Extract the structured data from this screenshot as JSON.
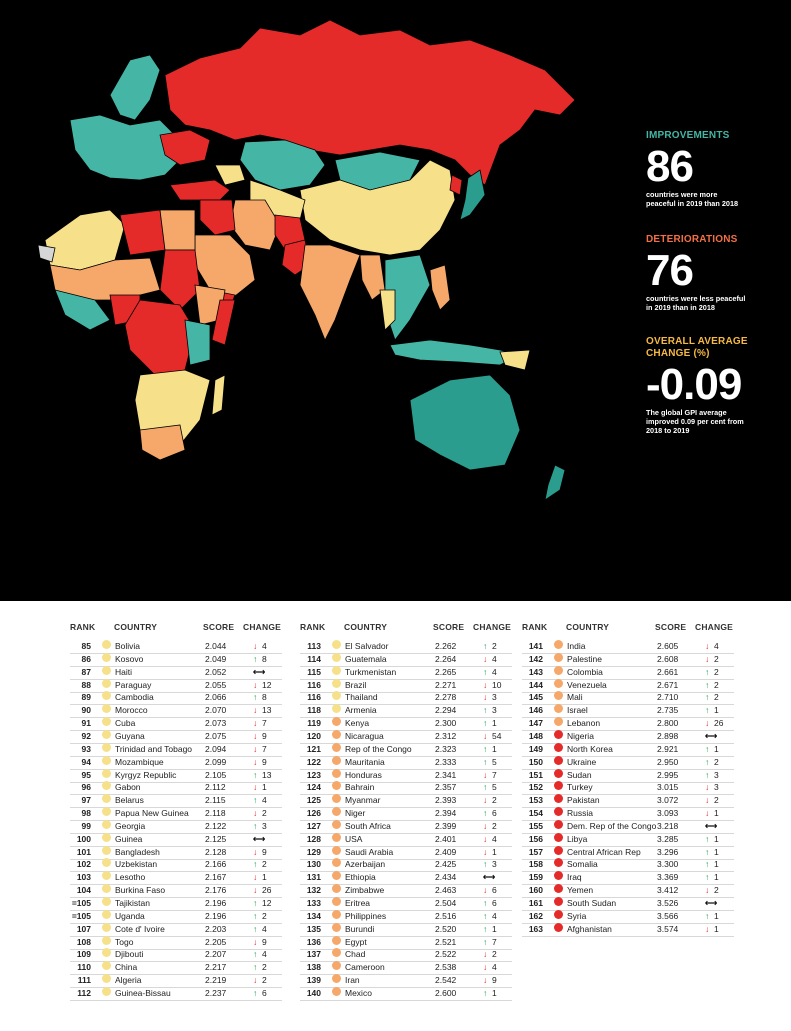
{
  "improvements": {
    "heading": "IMPROVEMENTS",
    "number": "86",
    "text": "countries were more peaceful in 2019 than 2018"
  },
  "deteriorations": {
    "heading": "DETERIORATIONS",
    "number": "76",
    "text": "countries were less peaceful in 2019 than in 2018"
  },
  "average": {
    "heading": "OVERALL AVERAGE CHANGE (%)",
    "number": "-0.09",
    "text": "The global GPI average improved 0.09 per cent from 2018 to 2019"
  },
  "colors": {
    "very_high": "#2a9d8f",
    "high": "#45b6a5",
    "medium": "#f6e08a",
    "low": "#f5a86a",
    "very_low": "#e52a2a",
    "nodata": "#d6d6d6",
    "map_bg": "#000000"
  },
  "headers": {
    "rank": "RANK",
    "country": "COUNTRY",
    "score": "SCORE",
    "change": "CHANGE"
  },
  "columns": [
    [
      {
        "rank": "85",
        "country": "Bolivia",
        "score": "2.044",
        "dir": "down",
        "change": "4",
        "level": "medium"
      },
      {
        "rank": "86",
        "country": "Kosovo",
        "score": "2.049",
        "dir": "up",
        "change": "8",
        "level": "medium"
      },
      {
        "rank": "87",
        "country": "Haiti",
        "score": "2.052",
        "dir": "same",
        "change": "",
        "level": "medium"
      },
      {
        "rank": "88",
        "country": "Paraguay",
        "score": "2.055",
        "dir": "down",
        "change": "12",
        "level": "medium"
      },
      {
        "rank": "89",
        "country": "Cambodia",
        "score": "2.066",
        "dir": "up",
        "change": "8",
        "level": "medium"
      },
      {
        "rank": "90",
        "country": "Morocco",
        "score": "2.070",
        "dir": "down",
        "change": "13",
        "level": "medium"
      },
      {
        "rank": "91",
        "country": "Cuba",
        "score": "2.073",
        "dir": "down",
        "change": "7",
        "level": "medium"
      },
      {
        "rank": "92",
        "country": "Guyana",
        "score": "2.075",
        "dir": "down",
        "change": "9",
        "level": "medium"
      },
      {
        "rank": "93",
        "country": "Trinidad and Tobago",
        "score": "2.094",
        "dir": "down",
        "change": "7",
        "level": "medium"
      },
      {
        "rank": "94",
        "country": "Mozambique",
        "score": "2.099",
        "dir": "down",
        "change": "9",
        "level": "medium"
      },
      {
        "rank": "95",
        "country": "Kyrgyz Republic",
        "score": "2.105",
        "dir": "up",
        "change": "13",
        "level": "medium"
      },
      {
        "rank": "96",
        "country": "Gabon",
        "score": "2.112",
        "dir": "down",
        "change": "1",
        "level": "medium"
      },
      {
        "rank": "97",
        "country": "Belarus",
        "score": "2.115",
        "dir": "up",
        "change": "4",
        "level": "medium"
      },
      {
        "rank": "98",
        "country": "Papua New Guinea",
        "score": "2.118",
        "dir": "down",
        "change": "2",
        "level": "medium"
      },
      {
        "rank": "99",
        "country": "Georgia",
        "score": "2.122",
        "dir": "up",
        "change": "3",
        "level": "medium"
      },
      {
        "rank": "100",
        "country": "Guinea",
        "score": "2.125",
        "dir": "same",
        "change": "",
        "level": "medium"
      },
      {
        "rank": "101",
        "country": "Bangladesh",
        "score": "2.128",
        "dir": "down",
        "change": "9",
        "level": "medium"
      },
      {
        "rank": "102",
        "country": "Uzbekistan",
        "score": "2.166",
        "dir": "up",
        "change": "2",
        "level": "medium"
      },
      {
        "rank": "103",
        "country": "Lesotho",
        "score": "2.167",
        "dir": "down",
        "change": "1",
        "level": "medium"
      },
      {
        "rank": "104",
        "country": "Burkina Faso",
        "score": "2.176",
        "dir": "down",
        "change": "26",
        "level": "medium"
      },
      {
        "rank": "=105",
        "country": "Tajikistan",
        "score": "2.196",
        "dir": "up",
        "change": "12",
        "level": "medium"
      },
      {
        "rank": "=105",
        "country": "Uganda",
        "score": "2.196",
        "dir": "up",
        "change": "2",
        "level": "medium"
      },
      {
        "rank": "107",
        "country": "Cote d' Ivoire",
        "score": "2.203",
        "dir": "up",
        "change": "4",
        "level": "medium"
      },
      {
        "rank": "108",
        "country": "Togo",
        "score": "2.205",
        "dir": "down",
        "change": "9",
        "level": "medium"
      },
      {
        "rank": "109",
        "country": "Djibouti",
        "score": "2.207",
        "dir": "up",
        "change": "4",
        "level": "medium"
      },
      {
        "rank": "110",
        "country": "China",
        "score": "2.217",
        "dir": "up",
        "change": "2",
        "level": "medium"
      },
      {
        "rank": "111",
        "country": "Algeria",
        "score": "2.219",
        "dir": "down",
        "change": "2",
        "level": "medium"
      },
      {
        "rank": "112",
        "country": "Guinea-Bissau",
        "score": "2.237",
        "dir": "up",
        "change": "6",
        "level": "medium"
      }
    ],
    [
      {
        "rank": "113",
        "country": "El Salvador",
        "score": "2.262",
        "dir": "up",
        "change": "2",
        "level": "medium"
      },
      {
        "rank": "114",
        "country": "Guatemala",
        "score": "2.264",
        "dir": "down",
        "change": "4",
        "level": "medium"
      },
      {
        "rank": "115",
        "country": "Turkmenistan",
        "score": "2.265",
        "dir": "up",
        "change": "4",
        "level": "medium"
      },
      {
        "rank": "116",
        "country": "Brazil",
        "score": "2.271",
        "dir": "down",
        "change": "10",
        "level": "medium"
      },
      {
        "rank": "116",
        "country": "Thailand",
        "score": "2.278",
        "dir": "down",
        "change": "3",
        "level": "medium"
      },
      {
        "rank": "118",
        "country": "Armenia",
        "score": "2.294",
        "dir": "up",
        "change": "3",
        "level": "medium"
      },
      {
        "rank": "119",
        "country": "Kenya",
        "score": "2.300",
        "dir": "up",
        "change": "1",
        "level": "low"
      },
      {
        "rank": "120",
        "country": "Nicaragua",
        "score": "2.312",
        "dir": "down",
        "change": "54",
        "level": "low"
      },
      {
        "rank": "121",
        "country": "Rep of the Congo",
        "score": "2.323",
        "dir": "up",
        "change": "1",
        "level": "low"
      },
      {
        "rank": "122",
        "country": "Mauritania",
        "score": "2.333",
        "dir": "up",
        "change": "5",
        "level": "low"
      },
      {
        "rank": "123",
        "country": "Honduras",
        "score": "2.341",
        "dir": "down",
        "change": "7",
        "level": "low"
      },
      {
        "rank": "124",
        "country": "Bahrain",
        "score": "2.357",
        "dir": "up",
        "change": "5",
        "level": "low"
      },
      {
        "rank": "125",
        "country": "Myanmar",
        "score": "2.393",
        "dir": "down",
        "change": "2",
        "level": "low"
      },
      {
        "rank": "126",
        "country": "Niger",
        "score": "2.394",
        "dir": "up",
        "change": "6",
        "level": "low"
      },
      {
        "rank": "127",
        "country": "South Africa",
        "score": "2.399",
        "dir": "down",
        "change": "2",
        "level": "low"
      },
      {
        "rank": "128",
        "country": "USA",
        "score": "2.401",
        "dir": "down",
        "change": "4",
        "level": "low"
      },
      {
        "rank": "129",
        "country": "Saudi Arabia",
        "score": "2.409",
        "dir": "down",
        "change": "1",
        "level": "low"
      },
      {
        "rank": "130",
        "country": "Azerbaijan",
        "score": "2.425",
        "dir": "up",
        "change": "3",
        "level": "low"
      },
      {
        "rank": "131",
        "country": "Ethiopia",
        "score": "2.434",
        "dir": "same",
        "change": "",
        "level": "low"
      },
      {
        "rank": "132",
        "country": "Zimbabwe",
        "score": "2.463",
        "dir": "down",
        "change": "6",
        "level": "low"
      },
      {
        "rank": "133",
        "country": "Eritrea",
        "score": "2.504",
        "dir": "up",
        "change": "6",
        "level": "low"
      },
      {
        "rank": "134",
        "country": "Philippines",
        "score": "2.516",
        "dir": "up",
        "change": "4",
        "level": "low"
      },
      {
        "rank": "135",
        "country": "Burundi",
        "score": "2.520",
        "dir": "up",
        "change": "1",
        "level": "low"
      },
      {
        "rank": "136",
        "country": "Egypt",
        "score": "2.521",
        "dir": "up",
        "change": "7",
        "level": "low"
      },
      {
        "rank": "137",
        "country": "Chad",
        "score": "2.522",
        "dir": "down",
        "change": "2",
        "level": "low"
      },
      {
        "rank": "138",
        "country": "Cameroon",
        "score": "2.538",
        "dir": "down",
        "change": "4",
        "level": "low"
      },
      {
        "rank": "139",
        "country": "Iran",
        "score": "2.542",
        "dir": "down",
        "change": "9",
        "level": "low"
      },
      {
        "rank": "140",
        "country": "Mexico",
        "score": "2.600",
        "dir": "up",
        "change": "1",
        "level": "low"
      }
    ],
    [
      {
        "rank": "141",
        "country": "India",
        "score": "2.605",
        "dir": "down",
        "change": "4",
        "level": "low"
      },
      {
        "rank": "142",
        "country": "Palestine",
        "score": "2.608",
        "dir": "down",
        "change": "2",
        "level": "low"
      },
      {
        "rank": "143",
        "country": "Colombia",
        "score": "2.661",
        "dir": "up",
        "change": "2",
        "level": "low"
      },
      {
        "rank": "144",
        "country": "Venezuela",
        "score": "2.671",
        "dir": "up",
        "change": "2",
        "level": "low"
      },
      {
        "rank": "145",
        "country": "Mali",
        "score": "2.710",
        "dir": "up",
        "change": "2",
        "level": "low"
      },
      {
        "rank": "146",
        "country": "Israel",
        "score": "2.735",
        "dir": "up",
        "change": "1",
        "level": "low"
      },
      {
        "rank": "147",
        "country": "Lebanon",
        "score": "2.800",
        "dir": "down",
        "change": "26",
        "level": "low"
      },
      {
        "rank": "148",
        "country": "Nigeria",
        "score": "2.898",
        "dir": "same",
        "change": "",
        "level": "very_low"
      },
      {
        "rank": "149",
        "country": "North Korea",
        "score": "2.921",
        "dir": "up",
        "change": "1",
        "level": "very_low"
      },
      {
        "rank": "150",
        "country": "Ukraine",
        "score": "2.950",
        "dir": "up",
        "change": "2",
        "level": "very_low"
      },
      {
        "rank": "151",
        "country": "Sudan",
        "score": "2.995",
        "dir": "up",
        "change": "3",
        "level": "very_low"
      },
      {
        "rank": "152",
        "country": "Turkey",
        "score": "3.015",
        "dir": "down",
        "change": "3",
        "level": "very_low"
      },
      {
        "rank": "153",
        "country": "Pakistan",
        "score": "3.072",
        "dir": "down",
        "change": "2",
        "level": "very_low"
      },
      {
        "rank": "154",
        "country": "Russia",
        "score": "3.093",
        "dir": "down",
        "change": "1",
        "level": "very_low"
      },
      {
        "rank": "155",
        "country": "Dem. Rep of the Congo",
        "score": "3.218",
        "dir": "same",
        "change": "",
        "level": "very_low"
      },
      {
        "rank": "156",
        "country": "Libya",
        "score": "3.285",
        "dir": "up",
        "change": "1",
        "level": "very_low"
      },
      {
        "rank": "157",
        "country": "Central African Rep",
        "score": "3.296",
        "dir": "up",
        "change": "1",
        "level": "very_low"
      },
      {
        "rank": "158",
        "country": "Somalia",
        "score": "3.300",
        "dir": "up",
        "change": "1",
        "level": "very_low"
      },
      {
        "rank": "159",
        "country": "Iraq",
        "score": "3.369",
        "dir": "up",
        "change": "1",
        "level": "very_low"
      },
      {
        "rank": "160",
        "country": "Yemen",
        "score": "3.412",
        "dir": "down",
        "change": "2",
        "level": "very_low"
      },
      {
        "rank": "161",
        "country": "South Sudan",
        "score": "3.526",
        "dir": "same",
        "change": "",
        "level": "very_low"
      },
      {
        "rank": "162",
        "country": "Syria",
        "score": "3.566",
        "dir": "up",
        "change": "1",
        "level": "very_low"
      },
      {
        "rank": "163",
        "country": "Afghanistan",
        "score": "3.574",
        "dir": "down",
        "change": "1",
        "level": "very_low"
      }
    ]
  ]
}
